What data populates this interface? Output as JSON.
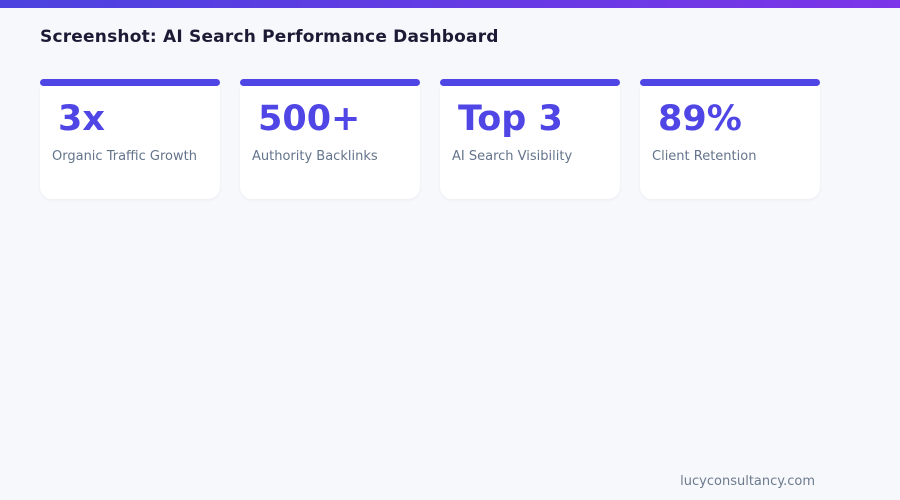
{
  "page": {
    "title": "Screenshot: AI Search Performance Dashboard",
    "footer": "lucyconsultancy.com"
  },
  "theme": {
    "accent": "#4f46e5",
    "accent_violet": "#7c35e8",
    "bg": "#f7f8fb",
    "card_bg": "#ffffff",
    "title_color": "#1b1b35",
    "label_color": "#64748b",
    "footer_color": "#6c7a8e"
  },
  "stats": [
    {
      "value": "3x",
      "label": "Organic Traffic Growth"
    },
    {
      "value": "500+",
      "label": "Authority Backlinks"
    },
    {
      "value": "Top 3",
      "label": "AI Search Visibility"
    },
    {
      "value": "89%",
      "label": "Client Retention"
    }
  ]
}
